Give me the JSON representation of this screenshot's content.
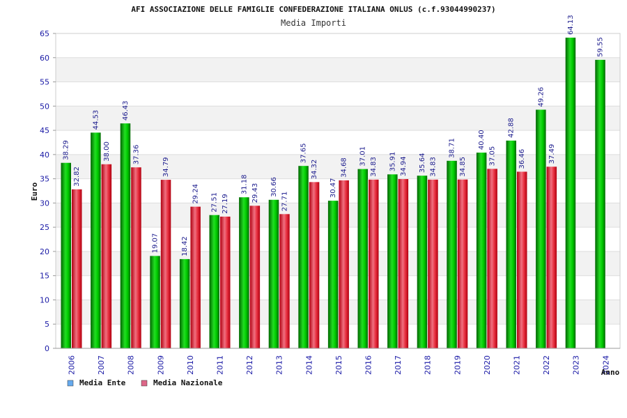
{
  "chart_data": {
    "type": "bar",
    "title": "AFI ASSOCIAZIONE DELLE FAMIGLIE CONFEDERAZIONE ITALIANA ONLUS (c.f.93044990237)",
    "subtitle": "Media Importi",
    "xlabel": "Anno",
    "ylabel": "Euro",
    "ylim": [
      0,
      65
    ],
    "yticks": [
      0,
      5,
      10,
      15,
      20,
      25,
      30,
      35,
      40,
      45,
      50,
      55,
      60,
      65
    ],
    "grid": true,
    "legend_position": "bottom-left",
    "categories": [
      "2006",
      "2007",
      "2008",
      "2009",
      "2010",
      "2011",
      "2012",
      "2013",
      "2014",
      "2015",
      "2016",
      "2017",
      "2018",
      "2019",
      "2020",
      "2021",
      "2022",
      "2023",
      "2024"
    ],
    "series": [
      {
        "name": "Media Ente",
        "color": "#00bb00",
        "legend_color": "#66aaee",
        "values": [
          38.29,
          44.53,
          46.43,
          19.07,
          18.42,
          27.51,
          31.18,
          30.66,
          37.65,
          30.47,
          37.01,
          35.91,
          35.64,
          38.71,
          40.4,
          42.88,
          49.26,
          64.13,
          59.55
        ],
        "labels": [
          "38.29",
          "44.53",
          "46.43",
          "19.07",
          "18.42",
          "27.51",
          "31.18",
          "30.66",
          "37.65",
          "30.47",
          "37.01",
          "35.91",
          "35.64",
          "38.71",
          "40.40",
          "42.88",
          "49.26",
          "64.13",
          "59.55"
        ]
      },
      {
        "name": "Media Nazionale",
        "color": "#e8303a",
        "legend_color": "#dd6688",
        "values": [
          32.82,
          38.0,
          37.36,
          34.79,
          29.24,
          27.19,
          29.43,
          27.71,
          34.32,
          34.68,
          34.83,
          34.94,
          34.83,
          34.85,
          37.05,
          36.46,
          37.49,
          null,
          null
        ],
        "labels": [
          "32.82",
          "38.00",
          "37.36",
          "34.79",
          "29.24",
          "27.19",
          "29.43",
          "27.71",
          "34.32",
          "34.68",
          "34.83",
          "34.94",
          "34.83",
          "34.85",
          "37.05",
          "36.46",
          "37.49",
          null,
          null
        ]
      }
    ]
  }
}
